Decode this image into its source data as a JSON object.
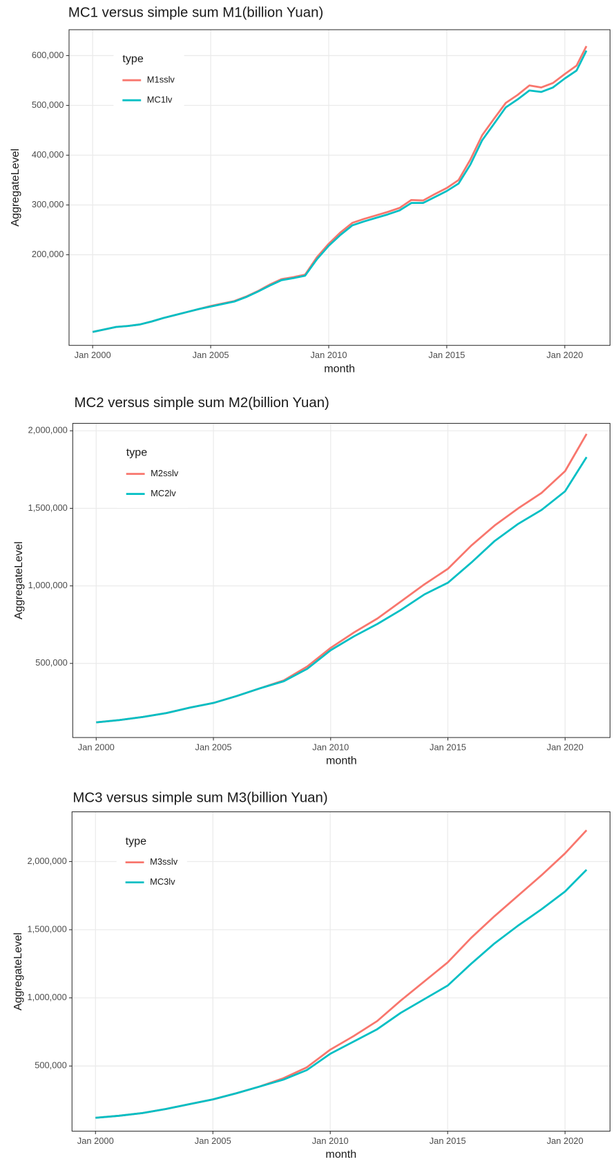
{
  "chart_data": [
    {
      "type": "line",
      "title": "MC1 versus simple sum M1(billion Yuan)",
      "x_label": "month",
      "y_label": "AggregateLevel",
      "legend_title": "type",
      "legend": "top-left",
      "grid": true,
      "x": [
        "Jan 2000",
        "Jul 2000",
        "Jan 2001",
        "Jul 2001",
        "Jan 2002",
        "Jul 2002",
        "Jan 2003",
        "Jul 2003",
        "Jan 2004",
        "Jul 2004",
        "Jan 2005",
        "Jul 2005",
        "Jan 2006",
        "Jul 2006",
        "Jan 2007",
        "Jul 2007",
        "Jan 2008",
        "Jul 2008",
        "Jan 2009",
        "Jul 2009",
        "Jan 2010",
        "Jul 2010",
        "Jan 2011",
        "Jul 2011",
        "Jan 2012",
        "Jul 2012",
        "Jan 2013",
        "Jul 2013",
        "Jan 2014",
        "Jul 2014",
        "Jan 2015",
        "Jul 2015",
        "Jan 2016",
        "Jul 2016",
        "Jan 2017",
        "Jul 2017",
        "Jan 2018",
        "Jul 2018",
        "Jan 2019",
        "Jul 2019",
        "Jan 2020",
        "Jul 2020",
        "Dec 2020"
      ],
      "xlim": [
        "Jan 1999",
        "Dec 2021"
      ],
      "xticks": [
        "Jan 2000",
        "Jan 2005",
        "Jan 2010",
        "Jan 2015",
        "Jan 2020"
      ],
      "ylim": [
        18000,
        652000
      ],
      "yticks": [
        {
          "value": 200000,
          "label": "200,000"
        },
        {
          "value": 300000,
          "label": "300,000"
        },
        {
          "value": 400000,
          "label": "400,000"
        },
        {
          "value": 500000,
          "label": "500,000"
        },
        {
          "value": 600000,
          "label": "600,000"
        }
      ],
      "series": [
        {
          "name": "M1sslv",
          "color": "#F8766D",
          "values": [
            45000,
            50000,
            55000,
            57000,
            60000,
            66000,
            73000,
            79000,
            85000,
            91000,
            97000,
            102000,
            107000,
            116000,
            127000,
            140000,
            151000,
            155000,
            160000,
            195000,
            222000,
            245000,
            264000,
            272000,
            279000,
            286000,
            294000,
            310000,
            309000,
            322000,
            334000,
            350000,
            391000,
            440000,
            473000,
            505000,
            521000,
            540000,
            536000,
            545000,
            563000,
            580000,
            619000
          ]
        },
        {
          "name": "MC1lv",
          "color": "#00BFC4",
          "values": [
            45000,
            50000,
            55000,
            57000,
            60000,
            66000,
            73000,
            79000,
            85000,
            91000,
            96000,
            101000,
            106000,
            115000,
            126000,
            138000,
            149000,
            153000,
            158000,
            191000,
            218000,
            240000,
            259000,
            267000,
            274000,
            281000,
            289000,
            304000,
            304000,
            316000,
            328000,
            343000,
            381000,
            430000,
            463000,
            496000,
            512000,
            530000,
            527000,
            536000,
            554000,
            570000,
            610000
          ]
        }
      ]
    },
    {
      "type": "line",
      "title": "MC2 versus simple sum M2(billion Yuan)",
      "x_label": "month",
      "y_label": "AggregateLevel",
      "legend_title": "type",
      "legend": "top-left",
      "grid": true,
      "x": [
        "Jan 2000",
        "Jan 2001",
        "Jan 2002",
        "Jan 2003",
        "Jan 2004",
        "Jan 2005",
        "Jan 2006",
        "Jan 2007",
        "Jan 2008",
        "Jan 2009",
        "Jan 2010",
        "Jan 2011",
        "Jan 2012",
        "Jan 2013",
        "Jan 2014",
        "Jan 2015",
        "Jan 2016",
        "Jan 2017",
        "Jan 2018",
        "Jan 2019",
        "Jan 2020",
        "Dec 2020"
      ],
      "xlim": [
        "Jan 1999",
        "Dec 2021"
      ],
      "xticks": [
        "Jan 2000",
        "Jan 2005",
        "Jan 2010",
        "Jan 2015",
        "Jan 2020"
      ],
      "ylim": [
        22000,
        2048000
      ],
      "yticks": [
        {
          "value": 500000,
          "label": "500,000"
        },
        {
          "value": 1000000,
          "label": "1,000,000"
        },
        {
          "value": 1500000,
          "label": "1,500,000"
        },
        {
          "value": 2000000,
          "label": "2,000,000"
        }
      ],
      "series": [
        {
          "name": "M2sslv",
          "color": "#F8766D",
          "values": [
            120000,
            135000,
            155000,
            180000,
            215000,
            245000,
            290000,
            340000,
            390000,
            480000,
            600000,
            700000,
            790000,
            900000,
            1010000,
            1110000,
            1260000,
            1390000,
            1500000,
            1600000,
            1740000,
            1980000
          ]
        },
        {
          "name": "MC2lv",
          "color": "#00BFC4",
          "values": [
            120000,
            135000,
            155000,
            180000,
            215000,
            245000,
            290000,
            340000,
            385000,
            465000,
            585000,
            675000,
            755000,
            845000,
            945000,
            1020000,
            1150000,
            1290000,
            1400000,
            1490000,
            1610000,
            1830000
          ]
        }
      ]
    },
    {
      "type": "line",
      "title": "MC3 versus simple sum M3(billion Yuan)",
      "x_label": "month",
      "y_label": "AggregateLevel",
      "legend_title": "type",
      "legend": "top-left",
      "grid": true,
      "x": [
        "Jan 2000",
        "Jan 2001",
        "Jan 2002",
        "Jan 2003",
        "Jan 2004",
        "Jan 2005",
        "Jan 2006",
        "Jan 2007",
        "Jan 2008",
        "Jan 2009",
        "Jan 2010",
        "Jan 2011",
        "Jan 2012",
        "Jan 2013",
        "Jan 2014",
        "Jan 2015",
        "Jan 2016",
        "Jan 2017",
        "Jan 2018",
        "Jan 2019",
        "Jan 2020",
        "Dec 2020"
      ],
      "xlim": [
        "Jan 1999",
        "Dec 2021"
      ],
      "xticks": [
        "Jan 2000",
        "Jan 2005",
        "Jan 2010",
        "Jan 2015",
        "Jan 2020"
      ],
      "ylim": [
        22000,
        2365000
      ],
      "yticks": [
        {
          "value": 500000,
          "label": "500,000"
        },
        {
          "value": 1000000,
          "label": "1,000,000"
        },
        {
          "value": 1500000,
          "label": "1,500,000"
        },
        {
          "value": 2000000,
          "label": "2,000,000"
        }
      ],
      "series": [
        {
          "name": "M3sslv",
          "color": "#F8766D",
          "values": [
            120000,
            135000,
            155000,
            185000,
            220000,
            255000,
            300000,
            350000,
            410000,
            490000,
            620000,
            720000,
            830000,
            980000,
            1120000,
            1260000,
            1440000,
            1600000,
            1750000,
            1900000,
            2060000,
            2230000
          ]
        },
        {
          "name": "MC3lv",
          "color": "#00BFC4",
          "values": [
            120000,
            135000,
            155000,
            185000,
            220000,
            255000,
            300000,
            350000,
            400000,
            470000,
            590000,
            680000,
            770000,
            890000,
            990000,
            1090000,
            1250000,
            1400000,
            1530000,
            1650000,
            1780000,
            1940000
          ]
        }
      ]
    }
  ]
}
